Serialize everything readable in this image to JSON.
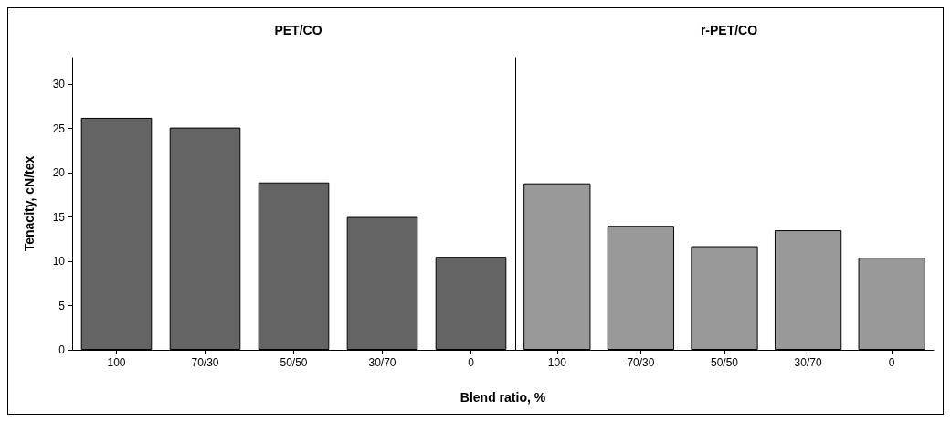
{
  "chart_data": [
    {
      "type": "bar",
      "title": "PET/CO",
      "ylabel": "Tenacity, cN/tex",
      "xlabel": "Blend ratio, %",
      "categories": [
        "100",
        "70/30",
        "50/50",
        "30/70",
        "0"
      ],
      "values": [
        26.2,
        25.1,
        18.9,
        15.0,
        10.5
      ],
      "color": "#646464",
      "ylim": [
        0,
        33
      ],
      "yticks": [
        0,
        5,
        10,
        15,
        20,
        25,
        30
      ]
    },
    {
      "type": "bar",
      "title": "r-PET/CO",
      "categories": [
        "100",
        "70/30",
        "50/50",
        "30/70",
        "0"
      ],
      "values": [
        18.8,
        14.0,
        11.7,
        13.5,
        10.4
      ],
      "color": "#999999",
      "ylim": [
        0,
        33
      ],
      "yticks": [
        0,
        5,
        10,
        15,
        20,
        25,
        30
      ],
      "tick_labels": "x"
    }
  ]
}
